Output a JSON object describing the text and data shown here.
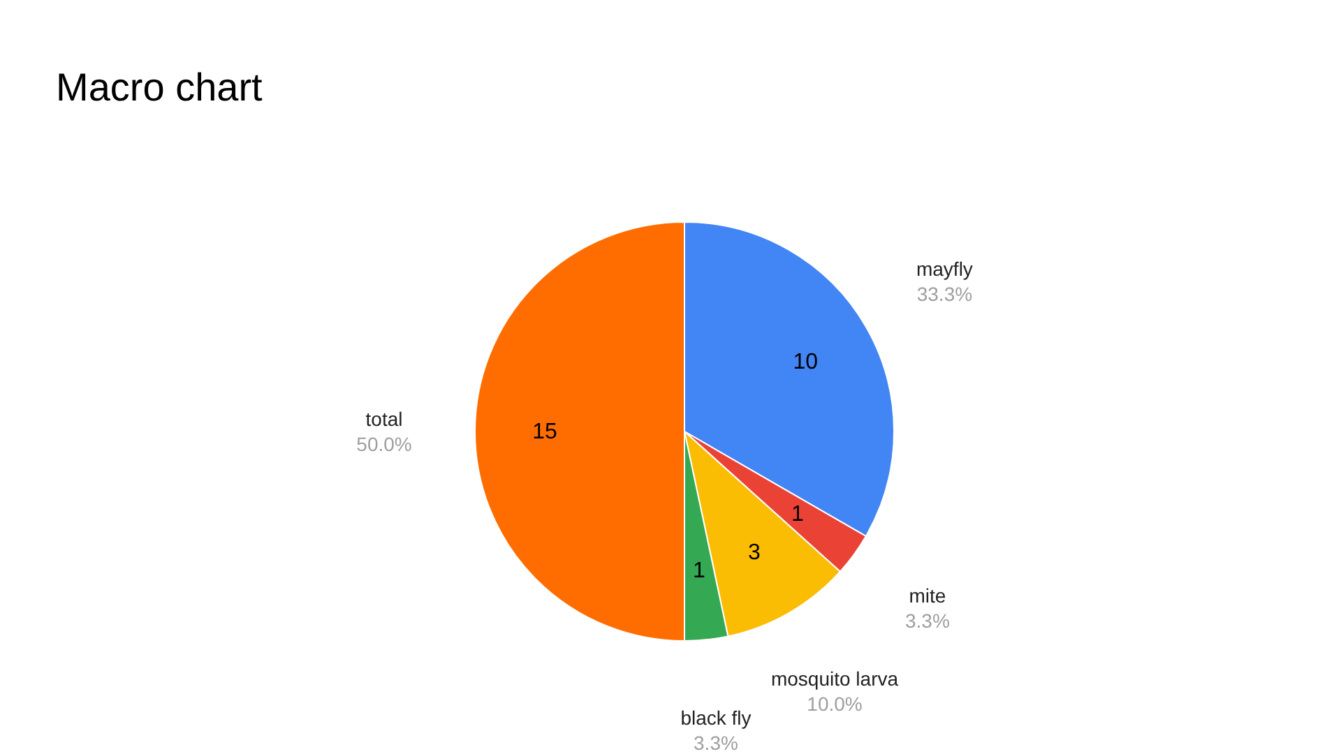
{
  "chart_data": {
    "type": "pie",
    "title": "Macro chart",
    "categories": [
      "mayfly",
      "mite",
      "mosquito larva",
      "black fly",
      "total"
    ],
    "values": [
      10,
      1,
      3,
      1,
      15
    ],
    "colors": [
      "#4285f4",
      "#ea4335",
      "#fbbc04",
      "#34a853",
      "#ff6d01"
    ],
    "value_labels": [
      "10",
      "1",
      "3",
      "1",
      "15"
    ],
    "annotations": [
      "33.3%",
      "3.3%",
      "10.0%",
      "3.3%",
      "50.0%"
    ]
  }
}
